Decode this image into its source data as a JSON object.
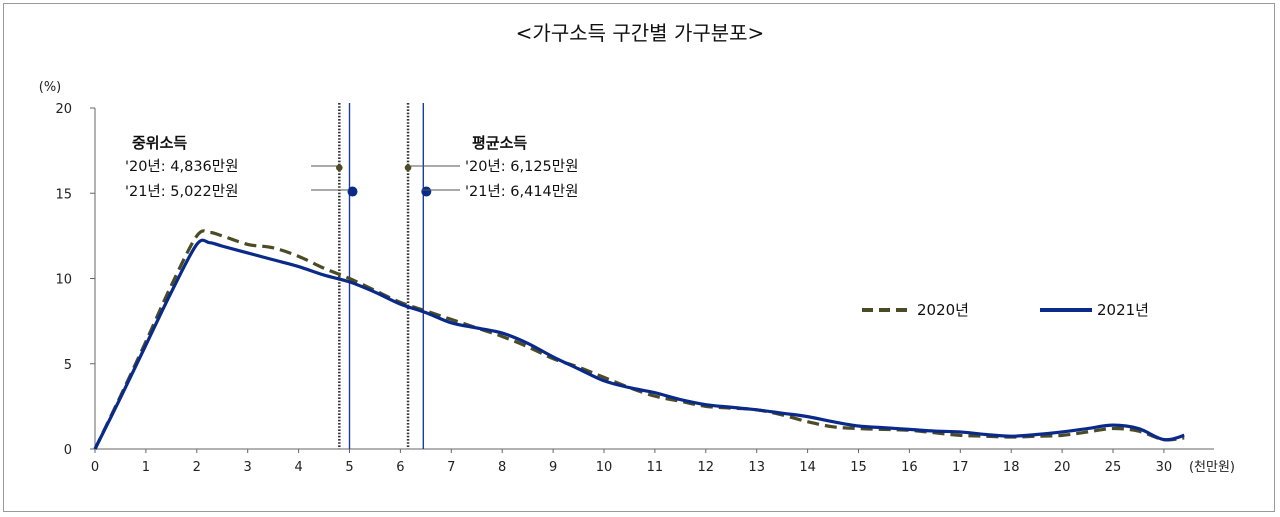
{
  "chart_data": {
    "type": "line",
    "title": "<가구소득 구간별 가구분포>",
    "ylabel": "(%)",
    "xlabel": "(천만원)",
    "ylim": [
      0,
      20
    ],
    "yticks": [
      "0",
      "5",
      "10",
      "15",
      "20"
    ],
    "xticks": [
      "0",
      "1",
      "2",
      "3",
      "4",
      "5",
      "6",
      "7",
      "8",
      "9",
      "10",
      "11",
      "12",
      "13",
      "14",
      "15",
      "16",
      "17",
      "18",
      "20",
      "25",
      "30"
    ],
    "x_index": [
      0,
      0.5,
      1,
      1.5,
      2,
      2.25,
      2.5,
      3,
      3.5,
      4,
      4.5,
      5,
      5.5,
      6,
      6.5,
      7,
      7.5,
      8,
      8.5,
      9,
      9.5,
      10,
      10.5,
      11,
      11.5,
      12,
      12.5,
      13,
      13.5,
      14,
      14.5,
      15,
      15.5,
      16,
      16.5,
      17,
      17.5,
      18,
      18.5,
      19,
      19.5,
      20,
      20.5,
      21,
      21.4
    ],
    "series": [
      {
        "name": "2020년",
        "values": [
          0,
          3.1,
          6.3,
          9.6,
          12.5,
          12.7,
          12.5,
          12,
          11.8,
          11.3,
          10.6,
          10,
          9.3,
          8.6,
          8.1,
          7.6,
          7.1,
          6.6,
          6.0,
          5.3,
          4.8,
          4.2,
          3.6,
          3.1,
          2.8,
          2.5,
          2.4,
          2.3,
          2.0,
          1.6,
          1.3,
          1.2,
          1.15,
          1.1,
          0.95,
          0.8,
          0.75,
          0.7,
          0.75,
          0.8,
          1.0,
          1.2,
          1.05,
          0.55,
          0.65
        ],
        "color": "#4b4b26",
        "style": "dashed"
      },
      {
        "name": "2021년",
        "values": [
          0,
          3.0,
          6.1,
          9.2,
          12.0,
          12.1,
          11.9,
          11.5,
          11.1,
          10.7,
          10.2,
          9.8,
          9.2,
          8.5,
          8.0,
          7.4,
          7.1,
          6.8,
          6.2,
          5.4,
          4.7,
          4.0,
          3.6,
          3.3,
          2.9,
          2.6,
          2.45,
          2.3,
          2.1,
          1.9,
          1.6,
          1.35,
          1.25,
          1.15,
          1.05,
          1.0,
          0.85,
          0.75,
          0.85,
          1.0,
          1.2,
          1.4,
          1.2,
          0.55,
          0.8
        ],
        "color": "#0a2a8a",
        "style": "solid"
      }
    ],
    "reference_lines": [
      {
        "x_index": 4.8,
        "color": "#333333",
        "style": "dotted",
        "marker_y": 16.5
      },
      {
        "x_index": 5.0,
        "color": "#1a3da0",
        "style": "solid",
        "marker_y": 15.1
      },
      {
        "x_index": 6.15,
        "color": "#333333",
        "style": "dotted",
        "marker_y": 16.5
      },
      {
        "x_index": 6.45,
        "color": "#1a3da0",
        "style": "solid",
        "marker_y": 15.1
      }
    ],
    "annotations": {
      "median": {
        "label": "중위소득",
        "line_2020": "'20년: 4,836만원",
        "line_2021": "'21년: 5,022만원"
      },
      "mean": {
        "label": "평균소득",
        "line_2020": "'20년: 6,125만원",
        "line_2021": "'21년: 6,414만원"
      }
    },
    "legend_position": "right",
    "grid": false
  }
}
